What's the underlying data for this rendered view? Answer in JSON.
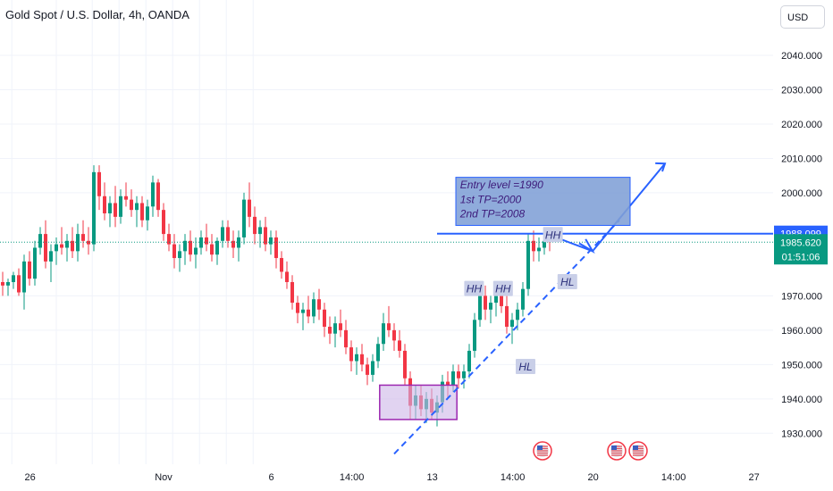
{
  "header": {
    "title": "Gold Spot / U.S. Dollar, 4h, OANDA",
    "currency": "USD"
  },
  "price_axis": {
    "ticks": [
      "2040.000",
      "2030.000",
      "2020.000",
      "2010.000",
      "2000.000",
      "1970.000",
      "1960.000",
      "1950.000",
      "1940.000",
      "1930.000"
    ],
    "tick_values": [
      2040,
      2030,
      2020,
      2010,
      2000,
      1970,
      1960,
      1950,
      1940,
      1930
    ],
    "badge_line": {
      "label": "1988.099",
      "value": 1988.099,
      "color": "#2962ff"
    },
    "badge_price": {
      "label": "1985.620",
      "value": 1985.62,
      "color": "#089981"
    },
    "badge_timer": "01:51:06"
  },
  "time_axis": {
    "labels": [
      "26",
      "Nov",
      "6",
      "14:00",
      "13",
      "14:00",
      "20",
      "14:00",
      "27"
    ],
    "positions": [
      1.7,
      10,
      16.7,
      21.7,
      26.7,
      31.7,
      36.7,
      41.7,
      46.7
    ]
  },
  "colors": {
    "up": "#089981",
    "down": "#f23645",
    "drawing": "#2962ff",
    "box_fill": "#cdb6e8",
    "box_border": "#9c27b0",
    "note_fill": "#7f9fd6",
    "note_text": "#3d1a7a",
    "tag_fill": "#c9cfe8",
    "tag_text": "#2b2f7a"
  },
  "annotations": {
    "note_lines": [
      "Entry level =1990",
      "1st TP=2000",
      "2nd TP=2008"
    ],
    "tags": [
      {
        "text": "HH",
        "x": 29.3,
        "y": 1972.0
      },
      {
        "text": "HH",
        "x": 31.1,
        "y": 1972.0
      },
      {
        "text": "HL",
        "x": 32.5,
        "y": 1949.3
      },
      {
        "text": "HH",
        "x": 34.2,
        "y": 1987.7
      },
      {
        "text": "HL",
        "x": 35.1,
        "y": 1974.0
      }
    ]
  },
  "chart_data": {
    "type": "candlestick",
    "title": "Gold Spot / U.S. Dollar, 4h, OANDA",
    "x_unit": "bars (4h)",
    "ylim": [
      1922,
      2050
    ],
    "horizontal_line": 1988.099,
    "last_price": 1985.62,
    "candles": [
      [
        1974,
        1977,
        1970,
        1973
      ],
      [
        1973,
        1975,
        1970,
        1974
      ],
      [
        1974,
        1977,
        1972,
        1976
      ],
      [
        1976,
        1978,
        1970,
        1971
      ],
      [
        1971,
        1982,
        1966,
        1980
      ],
      [
        1980,
        1983,
        1973,
        1975
      ],
      [
        1975,
        1986,
        1973,
        1984
      ],
      [
        1984,
        1990,
        1982,
        1988
      ],
      [
        1988,
        1992,
        1978,
        1980
      ],
      [
        1980,
        1985,
        1974,
        1983
      ],
      [
        1983,
        1987,
        1979,
        1985
      ],
      [
        1985,
        1990,
        1982,
        1984
      ],
      [
        1984,
        1988,
        1980,
        1986
      ],
      [
        1986,
        1990,
        1981,
        1983
      ],
      [
        1983,
        1991,
        1980,
        1988
      ],
      [
        1988,
        1992,
        1984,
        1986
      ],
      [
        1986,
        1990,
        1982,
        1985
      ],
      [
        1985,
        2008,
        1983,
        2006
      ],
      [
        2006,
        2008,
        1995,
        1999
      ],
      [
        1999,
        2003,
        1992,
        1994
      ],
      [
        1994,
        1999,
        1990,
        1997
      ],
      [
        1997,
        2002,
        1990,
        1993
      ],
      [
        1993,
        2001,
        1991,
        1999
      ],
      [
        1999,
        2003,
        1996,
        1998
      ],
      [
        1998,
        2001,
        1993,
        1995
      ],
      [
        1995,
        1999,
        1990,
        1997
      ],
      [
        1997,
        1999,
        1990,
        1992
      ],
      [
        1992,
        1998,
        1989,
        1996
      ],
      [
        1996,
        2005,
        1993,
        2003
      ],
      [
        2003,
        2004,
        1993,
        1995
      ],
      [
        1995,
        1997,
        1986,
        1988
      ],
      [
        1988,
        1991,
        1983,
        1985
      ],
      [
        1985,
        1988,
        1978,
        1981
      ],
      [
        1981,
        1985,
        1977,
        1983
      ],
      [
        1983,
        1988,
        1979,
        1986
      ],
      [
        1986,
        1989,
        1980,
        1982
      ],
      [
        1982,
        1987,
        1978,
        1984
      ],
      [
        1984,
        1989,
        1982,
        1987
      ],
      [
        1987,
        1991,
        1983,
        1985
      ],
      [
        1985,
        1988,
        1980,
        1982
      ],
      [
        1982,
        1987,
        1979,
        1986
      ],
      [
        1986,
        1992,
        1984,
        1990
      ],
      [
        1990,
        1992,
        1984,
        1986
      ],
      [
        1986,
        1989,
        1981,
        1984
      ],
      [
        1984,
        1989,
        1980,
        1987
      ],
      [
        1987,
        2000,
        1985,
        1998
      ],
      [
        1998,
        2003,
        1990,
        1993
      ],
      [
        1993,
        1996,
        1985,
        1988
      ],
      [
        1988,
        1992,
        1984,
        1990
      ],
      [
        1990,
        1993,
        1983,
        1985
      ],
      [
        1985,
        1989,
        1982,
        1987
      ],
      [
        1987,
        1989,
        1978,
        1981
      ],
      [
        1981,
        1983,
        1975,
        1977
      ],
      [
        1977,
        1980,
        1972,
        1974
      ],
      [
        1974,
        1976,
        1966,
        1968
      ],
      [
        1968,
        1970,
        1962,
        1965
      ],
      [
        1965,
        1968,
        1960,
        1966
      ],
      [
        1966,
        1970,
        1962,
        1964
      ],
      [
        1964,
        1971,
        1962,
        1969
      ],
      [
        1969,
        1972,
        1963,
        1966
      ],
      [
        1966,
        1968,
        1958,
        1961
      ],
      [
        1961,
        1964,
        1956,
        1959
      ],
      [
        1959,
        1964,
        1955,
        1962
      ],
      [
        1962,
        1966,
        1958,
        1960
      ],
      [
        1960,
        1963,
        1953,
        1955
      ],
      [
        1955,
        1957,
        1948,
        1951
      ],
      [
        1951,
        1955,
        1947,
        1953
      ],
      [
        1953,
        1956,
        1948,
        1950
      ],
      [
        1950,
        1952,
        1944,
        1947
      ],
      [
        1947,
        1953,
        1945,
        1951
      ],
      [
        1951,
        1958,
        1949,
        1956
      ],
      [
        1956,
        1965,
        1954,
        1962
      ],
      [
        1962,
        1967,
        1958,
        1960
      ],
      [
        1960,
        1962,
        1954,
        1957
      ],
      [
        1957,
        1960,
        1952,
        1954
      ],
      [
        1954,
        1956,
        1944,
        1946
      ],
      [
        1946,
        1948,
        1934,
        1938
      ],
      [
        1938,
        1944,
        1934,
        1941
      ],
      [
        1941,
        1944,
        1935,
        1937
      ],
      [
        1937,
        1942,
        1933,
        1940
      ],
      [
        1940,
        1943,
        1934,
        1936
      ],
      [
        1936,
        1941,
        1932,
        1939
      ],
      [
        1939,
        1947,
        1936,
        1945
      ],
      [
        1945,
        1948,
        1940,
        1944
      ],
      [
        1944,
        1950,
        1942,
        1948
      ],
      [
        1948,
        1950,
        1943,
        1946
      ],
      [
        1946,
        1950,
        1943,
        1948
      ],
      [
        1948,
        1956,
        1946,
        1954
      ],
      [
        1954,
        1965,
        1952,
        1963
      ],
      [
        1963,
        1972,
        1961,
        1970
      ],
      [
        1970,
        1973,
        1963,
        1966
      ],
      [
        1966,
        1970,
        1962,
        1968
      ],
      [
        1968,
        1972,
        1964,
        1970
      ],
      [
        1970,
        1973,
        1965,
        1967
      ],
      [
        1967,
        1970,
        1959,
        1961
      ],
      [
        1961,
        1965,
        1956,
        1963
      ],
      [
        1963,
        1968,
        1960,
        1966
      ],
      [
        1966,
        1974,
        1964,
        1972
      ],
      [
        1972,
        1988,
        1970,
        1986
      ],
      [
        1986,
        1989,
        1980,
        1983
      ],
      [
        1983,
        1987,
        1980,
        1984
      ],
      [
        1984,
        1988,
        1982,
        1986
      ],
      [
        1986,
        1988,
        1983,
        1985.62
      ]
    ]
  }
}
